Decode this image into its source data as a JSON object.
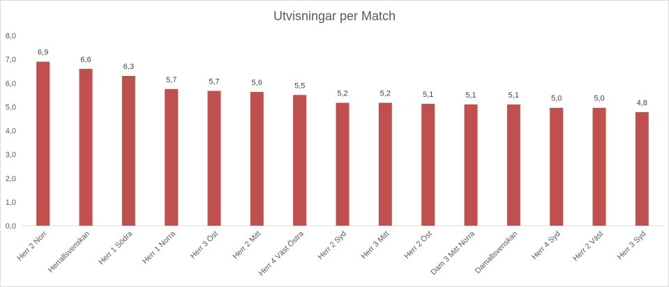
{
  "chart_data": {
    "type": "bar",
    "title": "Utvisningar per Match",
    "xlabel": "",
    "ylabel": "",
    "ylim": [
      0,
      8
    ],
    "yticks": [
      "0,0",
      "1,0",
      "2,0",
      "3,0",
      "4,0",
      "5,0",
      "6,0",
      "7,0",
      "8,0"
    ],
    "grid": false,
    "legend": "none",
    "bar_color": "#c0504d",
    "categories": [
      "Herr 2 Norr",
      "Herrallsvenskan",
      "Herr 1 Södra",
      "Herr 1 Norra",
      "Herr 3 Öst",
      "Herr 2 Mitt",
      "Herr 4 Väst Östra",
      "Herr 2 Syd",
      "Herr 3 Mitt",
      "Herr 2 Öst",
      "Dam 3 Mitt Norra",
      "Damallsvenskan",
      "Herr 4 Syd",
      "Herr 2 Väst",
      "Herr 3 Syd"
    ],
    "values": [
      6.9,
      6.6,
      6.3,
      5.75,
      5.67,
      5.63,
      5.5,
      5.17,
      5.17,
      5.13,
      5.1,
      5.1,
      4.96,
      4.96,
      4.78
    ],
    "value_labels": [
      "6,9",
      "6,6",
      "6,3",
      "5,7",
      "5,7",
      "5,6",
      "5,5",
      "5,2",
      "5,2",
      "5,1",
      "5,1",
      "5,1",
      "5,0",
      "5,0",
      "4,8"
    ]
  }
}
